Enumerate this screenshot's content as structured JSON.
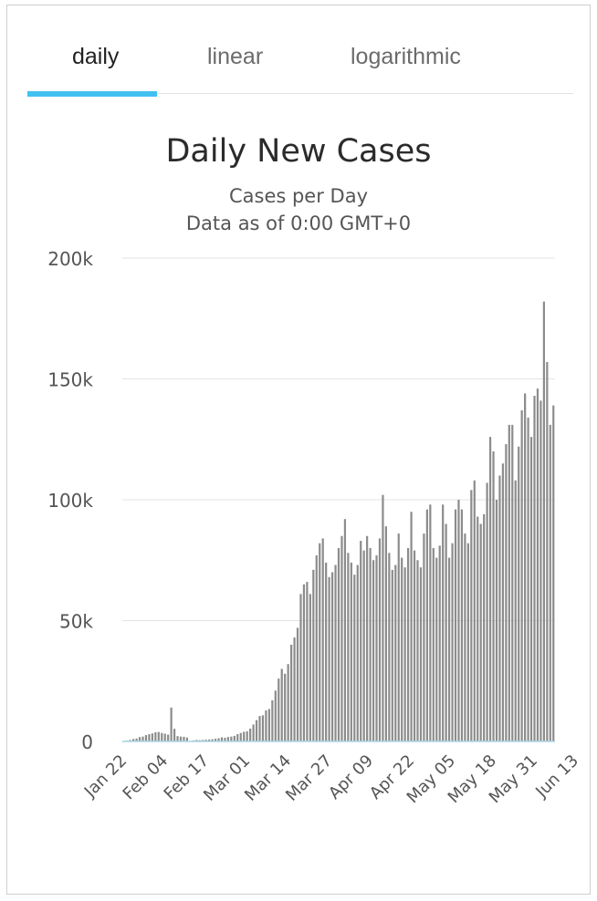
{
  "tabs": [
    {
      "label": "daily",
      "active": true
    },
    {
      "label": "linear",
      "active": false
    },
    {
      "label": "logarithmic",
      "active": false
    }
  ],
  "colors": {
    "accent": "#41c1f0",
    "bars": "#8c8c8c",
    "baseline": "#a9d4e6"
  },
  "chart_data": {
    "type": "bar",
    "title": "Daily New Cases",
    "subtitle": "Cases per Day",
    "subtitle2": "Data as of 0:00 GMT+0",
    "xlabel": "",
    "ylabel": "",
    "ylim": [
      0,
      200000
    ],
    "yticks": [
      0,
      50000,
      100000,
      150000,
      200000
    ],
    "ytick_labels": [
      "0",
      "50k",
      "100k",
      "150k",
      "200k"
    ],
    "grid": true,
    "x_start": "Jan 22",
    "xtick_labels": [
      "Jan 22",
      "Feb 04",
      "Feb 17",
      "Mar 01",
      "Mar 14",
      "Mar 27",
      "Apr 09",
      "Apr 22",
      "May 05",
      "May 18",
      "May 31",
      "Jun 13"
    ],
    "xtick_index": [
      0,
      13,
      26,
      39,
      52,
      65,
      78,
      91,
      104,
      117,
      130,
      143
    ],
    "values": [
      100,
      300,
      600,
      1000,
      1200,
      1800,
      2000,
      2600,
      3000,
      3300,
      3800,
      3900,
      3500,
      3200,
      2800,
      14000,
      5200,
      2200,
      2000,
      1900,
      1600,
      0,
      400,
      600,
      500,
      600,
      700,
      800,
      900,
      1100,
      1300,
      1700,
      1500,
      1800,
      2000,
      2300,
      3000,
      3500,
      4000,
      4200,
      5300,
      7000,
      8800,
      10500,
      10800,
      12800,
      13400,
      17000,
      21000,
      26000,
      30000,
      28000,
      32000,
      40000,
      43000,
      47000,
      61000,
      65000,
      66000,
      61000,
      71000,
      77000,
      82000,
      84000,
      74000,
      68000,
      70000,
      73000,
      80000,
      85000,
      92000,
      78000,
      74000,
      69000,
      73000,
      83000,
      79000,
      85000,
      80000,
      75000,
      77000,
      84000,
      102000,
      89000,
      78000,
      71000,
      73000,
      86000,
      76000,
      72000,
      80000,
      95000,
      79000,
      75000,
      72000,
      86000,
      96000,
      98000,
      80000,
      76000,
      81000,
      98000,
      90000,
      76000,
      82000,
      96000,
      100000,
      96000,
      86000,
      82000,
      104000,
      108000,
      93000,
      90000,
      94000,
      107000,
      126000,
      120000,
      100000,
      110000,
      115000,
      123000,
      131000,
      131000,
      108000,
      122000,
      137000,
      144000,
      134000,
      126000,
      143000,
      146000,
      141000,
      182000,
      157000,
      131000,
      139000
    ]
  }
}
